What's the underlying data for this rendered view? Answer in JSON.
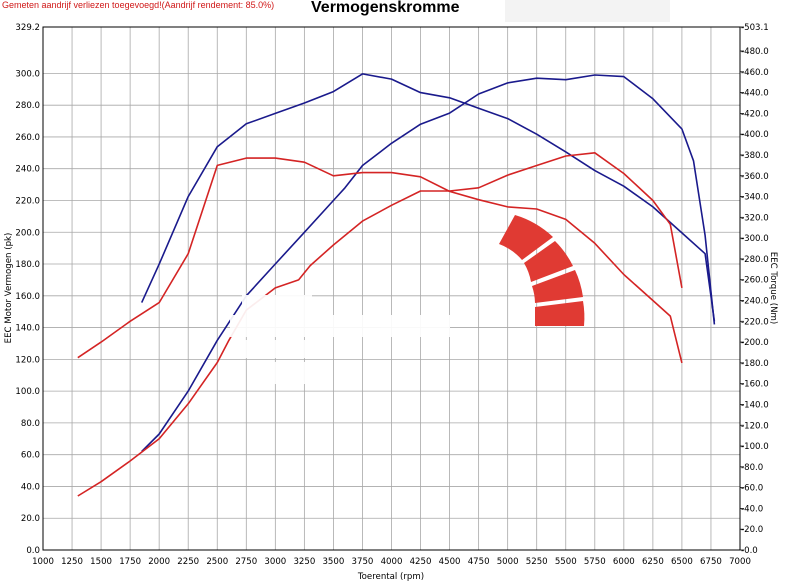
{
  "header": {
    "note": "Gemeten aandrijf verliezen toegevoegd!(Aandrijf rendement: 85.0%)",
    "title": "Vermogenskromme"
  },
  "chart_data": {
    "type": "line",
    "title": "Vermogenskromme",
    "xlabel": "Toerental (rpm)",
    "ylabel_left": "EEC Motor Vermogen (pk)",
    "ylabel_right": "EEC Torque (Nm)",
    "xlim": [
      1000,
      7000
    ],
    "ylim_left": [
      0,
      329.2
    ],
    "ylim_right": [
      0,
      503.1
    ],
    "grid": true,
    "x_ticks": [
      "1000",
      "1250",
      "1500",
      "1750",
      "2000",
      "2250",
      "2500",
      "2750",
      "3000",
      "3250",
      "3500",
      "3750",
      "4000",
      "4250",
      "4500",
      "4750",
      "5000",
      "5250",
      "5500",
      "5750",
      "6000",
      "6250",
      "6500",
      "6750",
      "7000"
    ],
    "y_left_ticks": [
      "329.2",
      "300.0",
      "280.0",
      "260.0",
      "240.0",
      "220.0",
      "200.0",
      "180.0",
      "160.0",
      "140.0",
      "120.0",
      "100.0",
      "80.0",
      "60.0",
      "40.0",
      "20.0",
      "0.0"
    ],
    "y_right_ticks": [
      "503.1",
      "480.0",
      "460.0",
      "440.0",
      "420.0",
      "400.0",
      "380.0",
      "360.0",
      "340.0",
      "320.0",
      "300.0",
      "280.0",
      "260.0",
      "240.0",
      "220.0",
      "200.0",
      "180.0",
      "160.0",
      "140.0",
      "120.0",
      "100.0",
      "80.0",
      "60.0",
      "40.0",
      "20.0",
      "0.0"
    ],
    "colors": {
      "blue": "#1a1a8c",
      "red": "#d42424",
      "grid": "#a8a8a8",
      "logo": "#e03a33"
    },
    "series": [
      {
        "color": "blue",
        "axis": "left",
        "x": [
          1850,
          2000,
          2250,
          2500,
          2750,
          3000,
          3250,
          3500,
          3600,
          3750,
          4000,
          4250,
          4500,
          4750,
          5000,
          5250,
          5500,
          5750,
          6000,
          6250,
          6500,
          6600,
          6700,
          6780
        ],
        "y": [
          62,
          73,
          100,
          132,
          160,
          180,
          200,
          220,
          228,
          242,
          256,
          268,
          275,
          287,
          294,
          297,
          296,
          299,
          298,
          284,
          265,
          245,
          198,
          142
        ]
      },
      {
        "color": "blue",
        "axis": "right",
        "x": [
          1850,
          2000,
          2250,
          2500,
          2750,
          3000,
          3250,
          3500,
          3750,
          4000,
          4250,
          4500,
          4750,
          5000,
          5250,
          5500,
          5750,
          6000,
          6250,
          6500,
          6700,
          6780
        ],
        "y": [
          238,
          275,
          340,
          388,
          410,
          420,
          430,
          441,
          458,
          453,
          440,
          435,
          425,
          415,
          400,
          383,
          365,
          350,
          330,
          305,
          285,
          220
        ]
      },
      {
        "color": "red",
        "axis": "left",
        "x": [
          1300,
          1500,
          1750,
          2000,
          2250,
          2500,
          2600,
          2750,
          3000,
          3200,
          3300,
          3500,
          3750,
          4000,
          4250,
          4500,
          4750,
          5000,
          5250,
          5500,
          5750,
          6000,
          6250,
          6400,
          6500
        ],
        "y": [
          34,
          43,
          56,
          70,
          92,
          118,
          132,
          151,
          165,
          170,
          179,
          192,
          207,
          217,
          226,
          226,
          228,
          236,
          242,
          248,
          250,
          237,
          220,
          205,
          165
        ]
      },
      {
        "color": "red",
        "axis": "right",
        "x": [
          1300,
          1500,
          1750,
          2000,
          2250,
          2500,
          2750,
          3000,
          3250,
          3500,
          3750,
          4000,
          4250,
          4500,
          4750,
          5000,
          5250,
          5500,
          5750,
          6000,
          6250,
          6400,
          6500
        ],
        "y": [
          185,
          200,
          220,
          238,
          285,
          370,
          377,
          377,
          373,
          360,
          363,
          363,
          359,
          345,
          337,
          330,
          328,
          318,
          295,
          265,
          240,
          225,
          180
        ]
      }
    ]
  }
}
